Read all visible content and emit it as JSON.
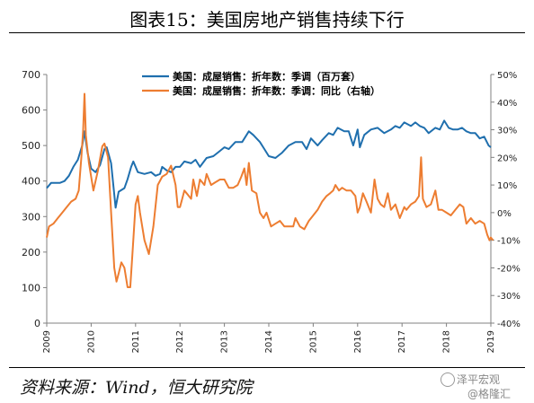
{
  "title": "图表15：美国房地产销售持续下行",
  "source": "资料来源：Wind，恒大研究院",
  "watermark": {
    "line1": "泽平宏观",
    "line2": "@格隆汇",
    "icon": "wechat-logo-icon"
  },
  "chart_data": {
    "type": "line",
    "x_ticks": [
      "2009",
      "2010",
      "2011",
      "2012",
      "2013",
      "2014",
      "2015",
      "2016",
      "2017",
      "2018",
      "2019"
    ],
    "y_left": {
      "range": [
        0,
        700
      ],
      "ticks": [
        "0",
        "100",
        "200",
        "300",
        "400",
        "500",
        "600",
        "700"
      ]
    },
    "y_right": {
      "range": [
        -40,
        50
      ],
      "ticks": [
        "-40%",
        "-30%",
        "-20%",
        "-10%",
        "0%",
        "10%",
        "20%",
        "30%",
        "40%",
        "50%"
      ]
    },
    "legend_position": "top-center",
    "series": [
      {
        "name": "美国：成屋销售：折年数：季调（百万套）",
        "axis": "left",
        "color": "#1f6fae",
        "points": [
          [
            2009.0,
            380
          ],
          [
            2009.1,
            395
          ],
          [
            2009.3,
            395
          ],
          [
            2009.4,
            400
          ],
          [
            2009.5,
            415
          ],
          [
            2009.6,
            440
          ],
          [
            2009.7,
            460
          ],
          [
            2009.8,
            500
          ],
          [
            2009.85,
            540
          ],
          [
            2009.92,
            480
          ],
          [
            2010.0,
            435
          ],
          [
            2010.1,
            425
          ],
          [
            2010.2,
            445
          ],
          [
            2010.3,
            490
          ],
          [
            2010.35,
            495
          ],
          [
            2010.45,
            450
          ],
          [
            2010.55,
            325
          ],
          [
            2010.62,
            370
          ],
          [
            2010.75,
            380
          ],
          [
            2010.82,
            405
          ],
          [
            2010.9,
            440
          ],
          [
            2010.95,
            455
          ],
          [
            2011.05,
            425
          ],
          [
            2011.2,
            420
          ],
          [
            2011.35,
            425
          ],
          [
            2011.45,
            415
          ],
          [
            2011.55,
            420
          ],
          [
            2011.6,
            440
          ],
          [
            2011.7,
            430
          ],
          [
            2011.8,
            425
          ],
          [
            2011.9,
            440
          ],
          [
            2012.0,
            440
          ],
          [
            2012.1,
            455
          ],
          [
            2012.25,
            450
          ],
          [
            2012.35,
            460
          ],
          [
            2012.45,
            440
          ],
          [
            2012.6,
            465
          ],
          [
            2012.75,
            470
          ],
          [
            2012.85,
            480
          ],
          [
            2013.0,
            495
          ],
          [
            2013.1,
            490
          ],
          [
            2013.25,
            510
          ],
          [
            2013.4,
            510
          ],
          [
            2013.55,
            540
          ],
          [
            2013.65,
            530
          ],
          [
            2013.8,
            510
          ],
          [
            2013.9,
            490
          ],
          [
            2014.0,
            470
          ],
          [
            2014.15,
            465
          ],
          [
            2014.3,
            480
          ],
          [
            2014.45,
            500
          ],
          [
            2014.6,
            510
          ],
          [
            2014.75,
            510
          ],
          [
            2014.85,
            490
          ],
          [
            2014.95,
            520
          ],
          [
            2015.1,
            500
          ],
          [
            2015.2,
            515
          ],
          [
            2015.35,
            535
          ],
          [
            2015.45,
            530
          ],
          [
            2015.55,
            550
          ],
          [
            2015.7,
            540
          ],
          [
            2015.8,
            540
          ],
          [
            2015.9,
            500
          ],
          [
            2016.0,
            545
          ],
          [
            2016.05,
            495
          ],
          [
            2016.15,
            530
          ],
          [
            2016.3,
            545
          ],
          [
            2016.45,
            550
          ],
          [
            2016.6,
            535
          ],
          [
            2016.75,
            545
          ],
          [
            2016.85,
            555
          ],
          [
            2016.95,
            550
          ],
          [
            2017.05,
            565
          ],
          [
            2017.2,
            555
          ],
          [
            2017.3,
            565
          ],
          [
            2017.4,
            555
          ],
          [
            2017.5,
            550
          ],
          [
            2017.6,
            535
          ],
          [
            2017.75,
            550
          ],
          [
            2017.85,
            545
          ],
          [
            2017.95,
            570
          ],
          [
            2018.05,
            550
          ],
          [
            2018.15,
            545
          ],
          [
            2018.25,
            545
          ],
          [
            2018.35,
            550
          ],
          [
            2018.45,
            540
          ],
          [
            2018.55,
            535
          ],
          [
            2018.65,
            535
          ],
          [
            2018.75,
            520
          ],
          [
            2018.85,
            525
          ],
          [
            2018.95,
            500
          ],
          [
            2019.0,
            495
          ]
        ]
      },
      {
        "name": "美国：成屋销售：折年数：季调：同比（右轴）",
        "axis": "right",
        "color": "#ed7d31",
        "points": [
          [
            2009.0,
            -9
          ],
          [
            2009.05,
            -5
          ],
          [
            2009.15,
            -4
          ],
          [
            2009.25,
            -2
          ],
          [
            2009.35,
            0
          ],
          [
            2009.45,
            2
          ],
          [
            2009.55,
            4
          ],
          [
            2009.65,
            5
          ],
          [
            2009.72,
            8
          ],
          [
            2009.78,
            20
          ],
          [
            2009.82,
            30
          ],
          [
            2009.85,
            43
          ],
          [
            2009.88,
            28
          ],
          [
            2009.95,
            18
          ],
          [
            2010.05,
            8
          ],
          [
            2010.15,
            15
          ],
          [
            2010.25,
            24
          ],
          [
            2010.3,
            25
          ],
          [
            2010.38,
            20
          ],
          [
            2010.45,
            0
          ],
          [
            2010.52,
            -20
          ],
          [
            2010.57,
            -25
          ],
          [
            2010.62,
            -22
          ],
          [
            2010.68,
            -18
          ],
          [
            2010.75,
            -20
          ],
          [
            2010.82,
            -27
          ],
          [
            2010.88,
            -27
          ],
          [
            2010.93,
            -15
          ],
          [
            2011.0,
            3
          ],
          [
            2011.05,
            6
          ],
          [
            2011.1,
            0
          ],
          [
            2011.2,
            -10
          ],
          [
            2011.3,
            -15
          ],
          [
            2011.4,
            -5
          ],
          [
            2011.5,
            10
          ],
          [
            2011.6,
            13
          ],
          [
            2011.7,
            14
          ],
          [
            2011.8,
            17
          ],
          [
            2011.9,
            10
          ],
          [
            2011.95,
            2
          ],
          [
            2012.0,
            2
          ],
          [
            2012.05,
            5
          ],
          [
            2012.1,
            8
          ],
          [
            2012.15,
            7
          ],
          [
            2012.25,
            5
          ],
          [
            2012.3,
            12
          ],
          [
            2012.38,
            6
          ],
          [
            2012.45,
            12
          ],
          [
            2012.55,
            10
          ],
          [
            2012.6,
            14
          ],
          [
            2012.7,
            10
          ],
          [
            2012.8,
            11
          ],
          [
            2012.9,
            12
          ],
          [
            2013.0,
            12
          ],
          [
            2013.1,
            9
          ],
          [
            2013.2,
            9
          ],
          [
            2013.3,
            10
          ],
          [
            2013.38,
            13
          ],
          [
            2013.45,
            16
          ],
          [
            2013.5,
            10
          ],
          [
            2013.55,
            18
          ],
          [
            2013.62,
            8
          ],
          [
            2013.72,
            7
          ],
          [
            2013.8,
            0
          ],
          [
            2013.88,
            -2
          ],
          [
            2013.95,
            0
          ],
          [
            2014.05,
            -5
          ],
          [
            2014.15,
            -4
          ],
          [
            2014.25,
            -3
          ],
          [
            2014.35,
            -5
          ],
          [
            2014.45,
            -5
          ],
          [
            2014.55,
            -5
          ],
          [
            2014.6,
            -2
          ],
          [
            2014.7,
            -5
          ],
          [
            2014.8,
            -6
          ],
          [
            2014.9,
            -3
          ],
          [
            2015.0,
            -1
          ],
          [
            2015.1,
            1
          ],
          [
            2015.2,
            4
          ],
          [
            2015.3,
            6
          ],
          [
            2015.38,
            7
          ],
          [
            2015.45,
            8
          ],
          [
            2015.5,
            10
          ],
          [
            2015.58,
            8
          ],
          [
            2015.65,
            9
          ],
          [
            2015.75,
            8
          ],
          [
            2015.85,
            8
          ],
          [
            2015.95,
            6
          ],
          [
            2016.0,
            0
          ],
          [
            2016.05,
            2
          ],
          [
            2016.12,
            7
          ],
          [
            2016.2,
            4
          ],
          [
            2016.3,
            0
          ],
          [
            2016.38,
            12
          ],
          [
            2016.45,
            5
          ],
          [
            2016.52,
            3
          ],
          [
            2016.6,
            2
          ],
          [
            2016.68,
            7
          ],
          [
            2016.75,
            1
          ],
          [
            2016.85,
            3
          ],
          [
            2016.95,
            -2
          ],
          [
            2017.05,
            2
          ],
          [
            2017.1,
            1
          ],
          [
            2017.2,
            3
          ],
          [
            2017.3,
            4
          ],
          [
            2017.38,
            6
          ],
          [
            2017.43,
            20
          ],
          [
            2017.47,
            5
          ],
          [
            2017.55,
            2
          ],
          [
            2017.65,
            3
          ],
          [
            2017.75,
            8
          ],
          [
            2017.82,
            1
          ],
          [
            2017.9,
            1
          ],
          [
            2018.0,
            0
          ],
          [
            2018.1,
            -1
          ],
          [
            2018.2,
            1
          ],
          [
            2018.3,
            3
          ],
          [
            2018.38,
            2
          ],
          [
            2018.45,
            -4
          ],
          [
            2018.55,
            -2
          ],
          [
            2018.65,
            -4
          ],
          [
            2018.75,
            -3
          ],
          [
            2018.85,
            -4
          ],
          [
            2018.92,
            -8
          ],
          [
            2018.97,
            -10
          ],
          [
            2019.0,
            -9
          ],
          [
            2019.05,
            -10
          ]
        ]
      }
    ]
  }
}
